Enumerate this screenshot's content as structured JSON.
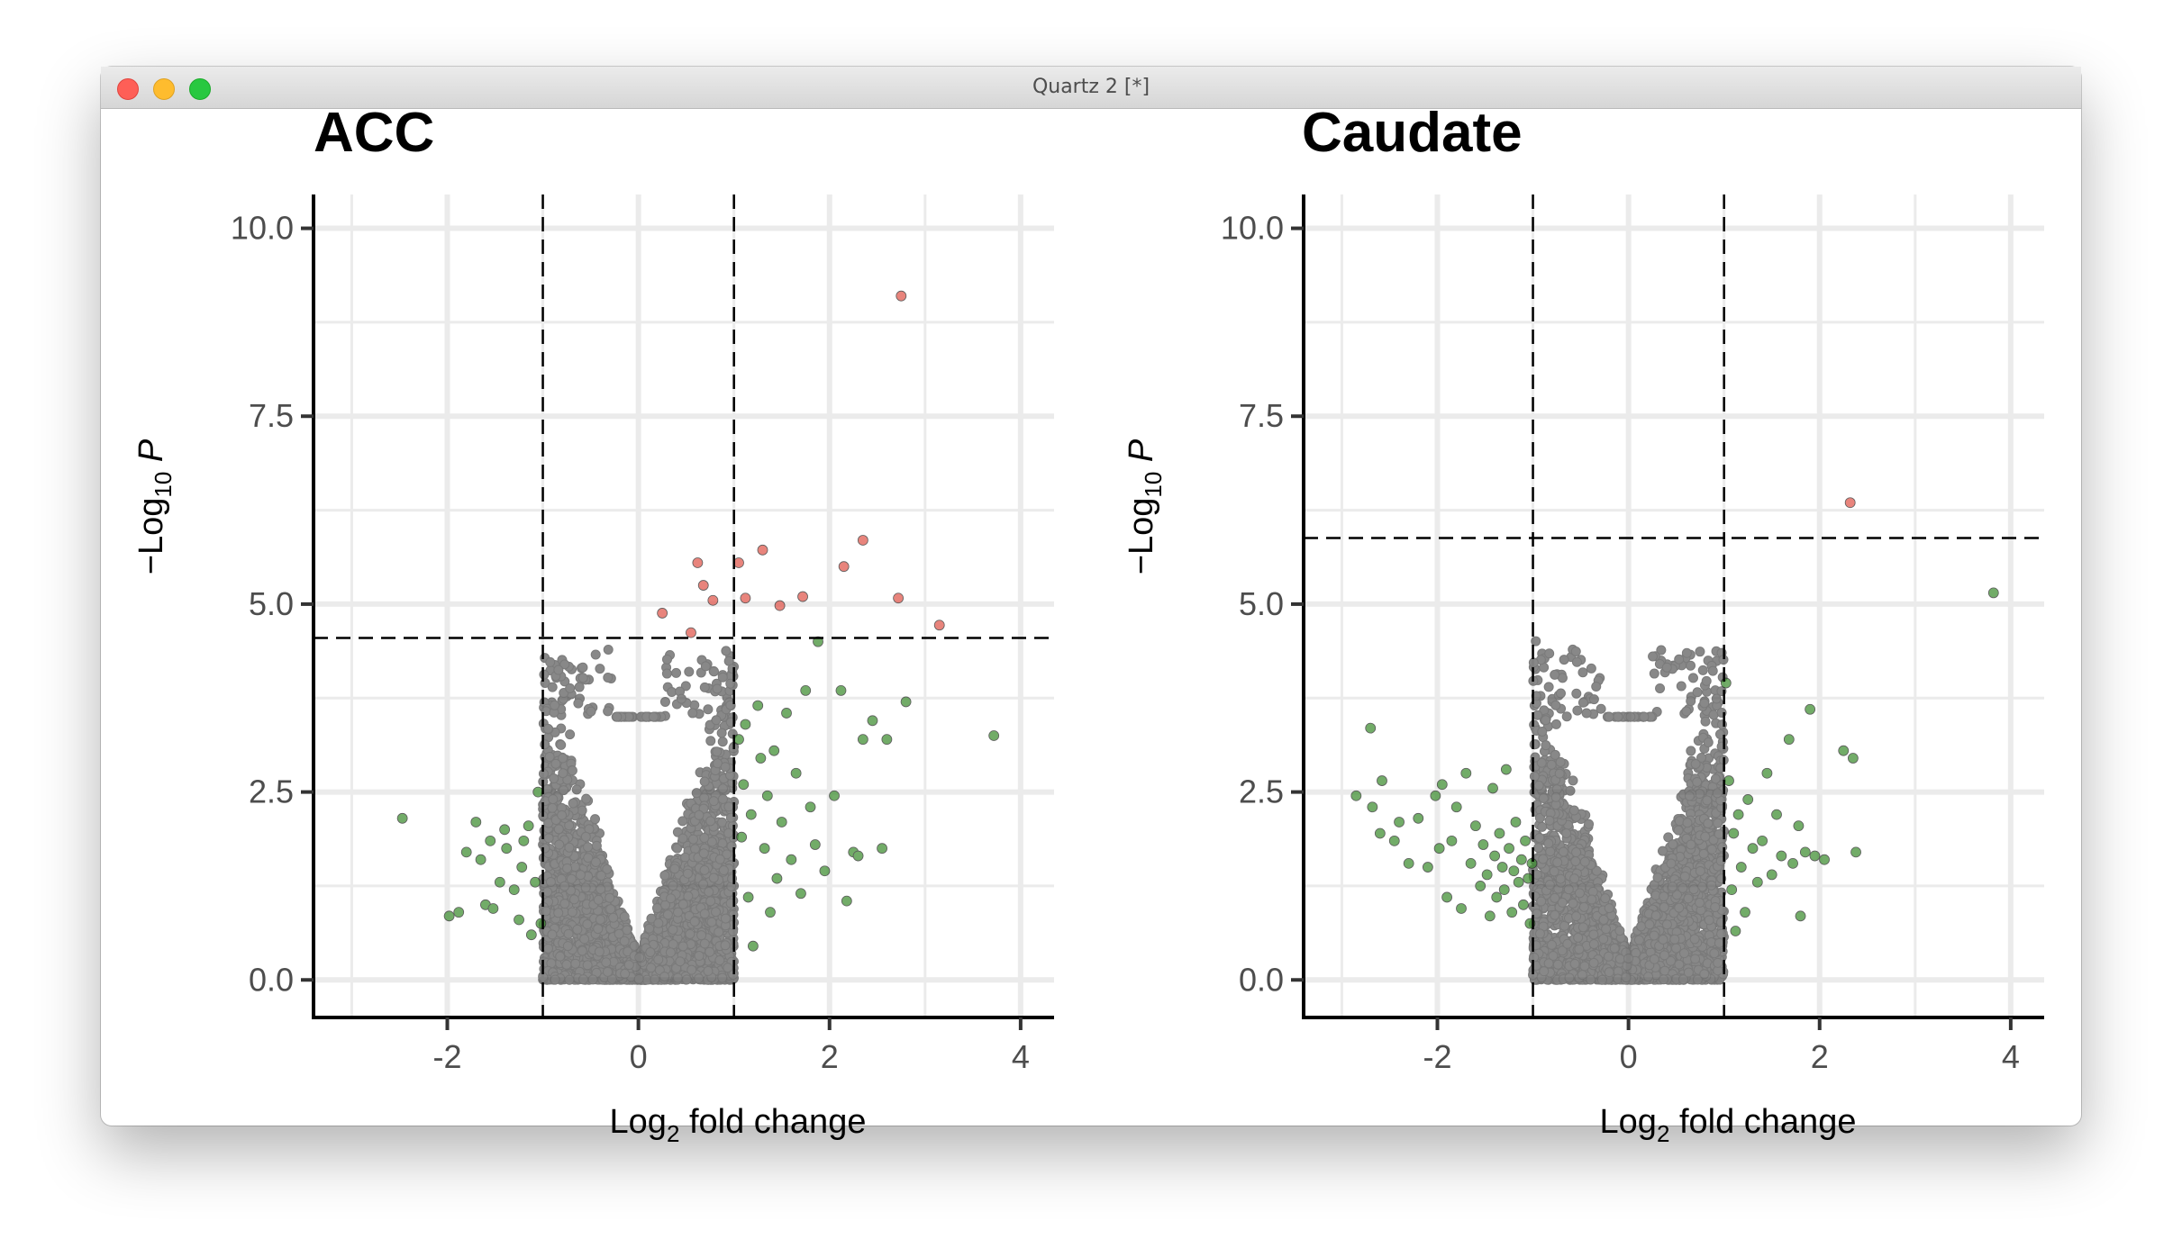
{
  "window": {
    "title": "Quartz 2 [*]"
  },
  "colors": {
    "ns": "#404040",
    "fc_only": "#3c8d2f",
    "sig": "#e0554b",
    "grid": "#ebebeb"
  },
  "chart_data": [
    {
      "type": "scatter",
      "title": "ACC",
      "xlabel": "Log2 fold change",
      "ylabel": "-Log10 P",
      "xlim": [
        -3.4,
        4.35
      ],
      "ylim": [
        -0.5,
        10.45
      ],
      "xticks": [
        "-2",
        "0",
        "2",
        "4"
      ],
      "yticks": [
        "0.0",
        "2.5",
        "5.0",
        "7.5",
        "10.0"
      ],
      "vlines": [
        -1,
        1
      ],
      "hline": 4.55,
      "grid": true,
      "legend": "none",
      "series": [
        {
          "points": [
            [
              -2.47,
              2.15
            ],
            [
              -1.98,
              0.85
            ],
            [
              -1.88,
              0.9
            ],
            [
              -1.8,
              1.7
            ],
            [
              -1.7,
              2.1
            ],
            [
              -1.65,
              1.6
            ],
            [
              -1.6,
              1.0
            ],
            [
              -1.55,
              1.85
            ],
            [
              -1.52,
              0.95
            ],
            [
              -1.45,
              1.3
            ],
            [
              -1.4,
              2.0
            ],
            [
              -1.38,
              1.75
            ],
            [
              -1.3,
              1.2
            ],
            [
              -1.25,
              0.8
            ],
            [
              -1.22,
              1.5
            ],
            [
              -1.2,
              1.85
            ],
            [
              -1.15,
              2.05
            ],
            [
              -1.12,
              0.6
            ],
            [
              -1.08,
              1.3
            ],
            [
              -1.05,
              2.5
            ],
            [
              -1.02,
              0.75
            ],
            [
              1.05,
              3.2
            ],
            [
              1.08,
              1.9
            ],
            [
              1.1,
              2.6
            ],
            [
              1.12,
              3.4
            ],
            [
              1.15,
              1.1
            ],
            [
              1.18,
              2.2
            ],
            [
              1.2,
              0.45
            ],
            [
              1.25,
              3.65
            ],
            [
              1.28,
              2.95
            ],
            [
              1.32,
              1.75
            ],
            [
              1.35,
              2.45
            ],
            [
              1.38,
              0.9
            ],
            [
              1.42,
              3.05
            ],
            [
              1.45,
              1.35
            ],
            [
              1.5,
              2.1
            ],
            [
              1.55,
              3.55
            ],
            [
              1.6,
              1.6
            ],
            [
              1.65,
              2.75
            ],
            [
              1.7,
              1.15
            ],
            [
              1.75,
              3.85
            ],
            [
              1.8,
              2.3
            ],
            [
              1.85,
              1.8
            ],
            [
              1.88,
              4.5
            ],
            [
              1.95,
              1.45
            ],
            [
              2.05,
              2.45
            ],
            [
              2.12,
              3.85
            ],
            [
              2.18,
              1.05
            ],
            [
              2.25,
              1.7
            ],
            [
              2.3,
              1.65
            ],
            [
              2.35,
              3.2
            ],
            [
              2.45,
              3.45
            ],
            [
              2.55,
              1.75
            ],
            [
              2.6,
              3.2
            ],
            [
              2.8,
              3.7
            ],
            [
              3.72,
              3.25
            ]
          ]
        },
        {
          "points": [
            [
              0.25,
              4.88
            ],
            [
              0.55,
              4.62
            ],
            [
              0.62,
              5.55
            ],
            [
              0.68,
              5.25
            ],
            [
              0.78,
              5.05
            ],
            [
              1.05,
              5.55
            ],
            [
              1.12,
              5.08
            ],
            [
              1.3,
              5.72
            ],
            [
              1.48,
              4.98
            ],
            [
              1.72,
              5.1
            ],
            [
              2.15,
              5.5
            ],
            [
              2.35,
              5.85
            ],
            [
              2.72,
              5.08
            ],
            [
              2.75,
              9.1
            ],
            [
              3.15,
              4.72
            ]
          ]
        }
      ],
      "cloud": {
        "xmax": 1.0,
        "ymax": 4.3
      }
    },
    {
      "type": "scatter",
      "title": "Caudate",
      "xlabel": "Log2 fold change",
      "ylabel": "-Log10 P",
      "xlim": [
        -3.4,
        4.35
      ],
      "ylim": [
        -0.5,
        10.45
      ],
      "xticks": [
        "-2",
        "0",
        "2",
        "4"
      ],
      "yticks": [
        "0.0",
        "2.5",
        "5.0",
        "7.5",
        "10.0"
      ],
      "vlines": [
        -1,
        1
      ],
      "hline": 5.88,
      "grid": true,
      "legend": "none",
      "series": [
        {
          "points": [
            [
              -2.85,
              2.45
            ],
            [
              -2.7,
              3.35
            ],
            [
              -2.68,
              2.3
            ],
            [
              -2.6,
              1.95
            ],
            [
              -2.58,
              2.65
            ],
            [
              -2.45,
              1.85
            ],
            [
              -2.4,
              2.1
            ],
            [
              -2.3,
              1.55
            ],
            [
              -2.2,
              2.15
            ],
            [
              -2.1,
              1.5
            ],
            [
              -2.02,
              2.45
            ],
            [
              -1.98,
              1.75
            ],
            [
              -1.95,
              2.6
            ],
            [
              -1.9,
              1.1
            ],
            [
              -1.85,
              1.85
            ],
            [
              -1.8,
              2.3
            ],
            [
              -1.75,
              0.95
            ],
            [
              -1.7,
              2.75
            ],
            [
              -1.65,
              1.55
            ],
            [
              -1.6,
              2.05
            ],
            [
              -1.55,
              1.25
            ],
            [
              -1.52,
              1.8
            ],
            [
              -1.48,
              1.4
            ],
            [
              -1.45,
              0.85
            ],
            [
              -1.42,
              2.55
            ],
            [
              -1.4,
              1.65
            ],
            [
              -1.38,
              1.1
            ],
            [
              -1.35,
              1.95
            ],
            [
              -1.32,
              1.5
            ],
            [
              -1.3,
              1.2
            ],
            [
              -1.28,
              2.8
            ],
            [
              -1.25,
              1.75
            ],
            [
              -1.22,
              0.9
            ],
            [
              -1.2,
              1.45
            ],
            [
              -1.18,
              2.1
            ],
            [
              -1.15,
              1.3
            ],
            [
              -1.12,
              1.6
            ],
            [
              -1.1,
              1.0
            ],
            [
              -1.08,
              1.85
            ],
            [
              -1.05,
              1.35
            ],
            [
              -1.03,
              0.75
            ],
            [
              -1.01,
              1.55
            ],
            [
              1.02,
              3.95
            ],
            [
              1.05,
              2.65
            ],
            [
              1.08,
              1.2
            ],
            [
              1.1,
              1.95
            ],
            [
              1.12,
              0.65
            ],
            [
              1.15,
              2.2
            ],
            [
              1.18,
              1.5
            ],
            [
              1.22,
              0.9
            ],
            [
              1.25,
              2.4
            ],
            [
              1.3,
              1.75
            ],
            [
              1.35,
              1.3
            ],
            [
              1.4,
              1.85
            ],
            [
              1.45,
              2.75
            ],
            [
              1.5,
              1.4
            ],
            [
              1.55,
              2.2
            ],
            [
              1.6,
              1.65
            ],
            [
              1.68,
              3.2
            ],
            [
              1.72,
              1.55
            ],
            [
              1.78,
              2.05
            ],
            [
              1.8,
              0.85
            ],
            [
              1.85,
              1.7
            ],
            [
              1.9,
              3.6
            ],
            [
              1.95,
              1.65
            ],
            [
              2.05,
              1.6
            ],
            [
              2.25,
              3.05
            ],
            [
              2.35,
              2.95
            ],
            [
              2.38,
              1.7
            ],
            [
              3.82,
              5.15
            ]
          ]
        },
        {
          "points": [
            [
              2.32,
              6.35
            ]
          ]
        }
      ],
      "cloud": {
        "xmax": 1.0,
        "ymax": 4.5
      }
    }
  ]
}
